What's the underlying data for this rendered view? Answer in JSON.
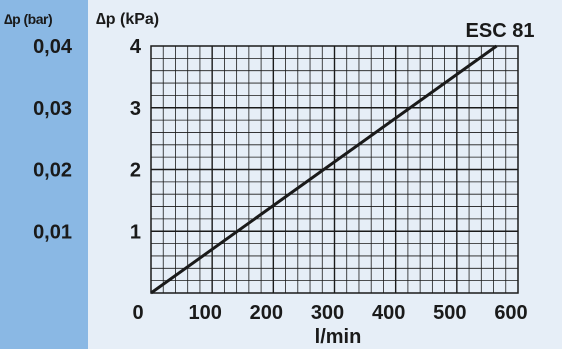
{
  "chart_data": {
    "type": "line",
    "title": "ESC 81",
    "xlabel": "l/min",
    "ylabel": "∆p (kPa)",
    "secondary_ylabel": "∆p (bar)",
    "xlim": [
      0,
      600
    ],
    "ylim": [
      0,
      4
    ],
    "xticks": [
      "0",
      "100",
      "200",
      "300",
      "400",
      "500",
      "600"
    ],
    "yticks": [
      "1",
      "2",
      "3",
      "4"
    ],
    "secondary_yticks": [
      "0,01",
      "0,02",
      "0,03",
      "0,04"
    ],
    "grid": true,
    "series": [
      {
        "x": [
          0,
          565
        ],
        "y": [
          0,
          4
        ]
      }
    ]
  },
  "colors": {
    "left_panel": "#8ab8e4",
    "plot_panel": "#e6eef7",
    "line": "#1a1a1a",
    "grid": "#1a1a1a"
  }
}
